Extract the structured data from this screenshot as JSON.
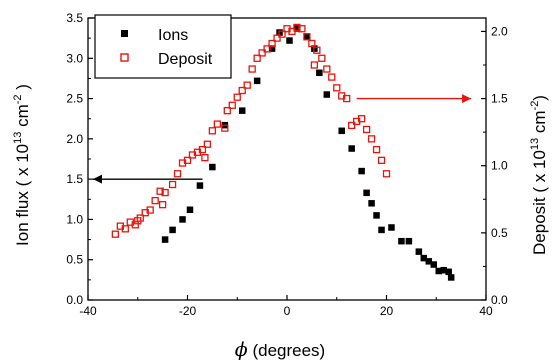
{
  "chart_data": {
    "type": "scatter",
    "xlabel_symbol": "ϕ",
    "xlabel_text": " (degrees)",
    "ylabel_left": "Ion flux ( x 10",
    "ylabel_left_exp": "13",
    "ylabel_left_unit": " cm",
    "ylabel_left_unit_exp": "-2",
    "ylabel_left_end": " )",
    "ylabel_right": "Deposit ( x 10",
    "ylabel_right_exp": "13",
    "ylabel_right_unit": " cm",
    "ylabel_right_unit_exp": "-2",
    "ylabel_right_end": ")",
    "xlim": [
      -40,
      40
    ],
    "ylim_left": [
      0,
      3.5
    ],
    "ylim_right": [
      0,
      2.1
    ],
    "xticks": [
      -40,
      -20,
      0,
      20,
      40
    ],
    "xtick_labels": [
      "-40",
      "-20",
      "0",
      "20",
      "40"
    ],
    "yticks_left": [
      0,
      0.5,
      1.0,
      1.5,
      2.0,
      2.5,
      3.0,
      3.5
    ],
    "ytick_labels_left": [
      "0.0",
      "0.5",
      "1.0",
      "1.5",
      "2.0",
      "2.5",
      "3.0",
      "3.5"
    ],
    "yticks_right": [
      0,
      0.5,
      1.0,
      1.5,
      2.0
    ],
    "ytick_labels_right": [
      "0.0",
      "0.5",
      "1.0",
      "1.5",
      "2.0"
    ],
    "legend_position": "top-left",
    "series": [
      {
        "name": "Ions",
        "axis": "left",
        "marker": "filled-square",
        "color": "#000000",
        "points": [
          [
            -24.5,
            0.75
          ],
          [
            -23,
            0.87
          ],
          [
            -21,
            1.0
          ],
          [
            -19.5,
            1.12
          ],
          [
            -17.5,
            1.42
          ],
          [
            -15,
            1.65
          ],
          [
            -12.5,
            2.17
          ],
          [
            -9,
            2.35
          ],
          [
            -6,
            2.72
          ],
          [
            -3,
            3.12
          ],
          [
            -1.5,
            3.32
          ],
          [
            0.5,
            3.22
          ],
          [
            2,
            3.37
          ],
          [
            4,
            3.27
          ],
          [
            5.5,
            3.12
          ],
          [
            6.5,
            2.82
          ],
          [
            8,
            2.55
          ],
          [
            11,
            2.1
          ],
          [
            13,
            1.88
          ],
          [
            15,
            1.6
          ],
          [
            16,
            1.33
          ],
          [
            17,
            1.2
          ],
          [
            18,
            1.05
          ],
          [
            19,
            0.87
          ],
          [
            21,
            0.9
          ],
          [
            23,
            0.73
          ],
          [
            24.5,
            0.73
          ],
          [
            26.5,
            0.6
          ],
          [
            27.5,
            0.52
          ],
          [
            28.5,
            0.48
          ],
          [
            29.5,
            0.44
          ],
          [
            30.5,
            0.36
          ],
          [
            31.5,
            0.37
          ],
          [
            32.5,
            0.35
          ],
          [
            33,
            0.28
          ]
        ]
      },
      {
        "name": "Deposit",
        "axis": "right",
        "marker": "open-square",
        "color": "#e8140c",
        "points": [
          [
            -34.5,
            0.49
          ],
          [
            -33.5,
            0.55
          ],
          [
            -32.5,
            0.53
          ],
          [
            -31.5,
            0.58
          ],
          [
            -30.5,
            0.56
          ],
          [
            -29.5,
            0.61
          ],
          [
            -28.5,
            0.65
          ],
          [
            -27.5,
            0.67
          ],
          [
            -26.5,
            0.74
          ],
          [
            -25.5,
            0.81
          ],
          [
            -24.5,
            0.8
          ],
          [
            -23,
            0.86
          ],
          [
            -22,
            0.94
          ],
          [
            -21,
            1.02
          ],
          [
            -20,
            1.04
          ],
          [
            -19,
            1.08
          ],
          [
            -18,
            1.1
          ],
          [
            -17,
            1.12
          ],
          [
            -16,
            1.16
          ],
          [
            -15,
            1.26
          ],
          [
            -14,
            1.31
          ],
          [
            -12,
            1.41
          ],
          [
            -11,
            1.45
          ],
          [
            -10,
            1.51
          ],
          [
            -9,
            1.56
          ],
          [
            -8,
            1.6
          ],
          [
            -7,
            1.72
          ],
          [
            -6,
            1.8
          ],
          [
            -5,
            1.84
          ],
          [
            -4,
            1.87
          ],
          [
            -3,
            1.91
          ],
          [
            -2,
            1.95
          ],
          [
            -1,
            1.98
          ],
          [
            0,
            2.02
          ],
          [
            1,
            2.0
          ],
          [
            2,
            2.03
          ],
          [
            3,
            2.02
          ],
          [
            4,
            1.96
          ],
          [
            5,
            1.91
          ],
          [
            6,
            1.86
          ],
          [
            7,
            1.8
          ],
          [
            8,
            1.72
          ],
          [
            9,
            1.66
          ],
          [
            10,
            1.58
          ],
          [
            11,
            1.52
          ],
          [
            12,
            1.5
          ],
          [
            13,
            1.3
          ],
          [
            14,
            1.33
          ],
          [
            15,
            1.35
          ],
          [
            16,
            1.27
          ],
          [
            17,
            1.2
          ],
          [
            18,
            1.12
          ],
          [
            19,
            1.04
          ],
          [
            20,
            0.94
          ],
          [
            -12.5,
            1.28
          ],
          [
            -16.5,
            1.06
          ],
          [
            -30,
            0.59
          ],
          [
            -25,
            0.71
          ],
          [
            5.5,
            1.75
          ]
        ]
      }
    ],
    "annotations": [
      {
        "type": "arrow",
        "direction": "left",
        "points_to": "left-axis",
        "from": [
          -17,
          1.5
        ],
        "to": [
          -39,
          1.5
        ]
      },
      {
        "type": "arrow",
        "direction": "right",
        "points_to": "right-axis",
        "from": [
          14,
          1.5
        ],
        "to": [
          37,
          1.5
        ]
      }
    ]
  }
}
